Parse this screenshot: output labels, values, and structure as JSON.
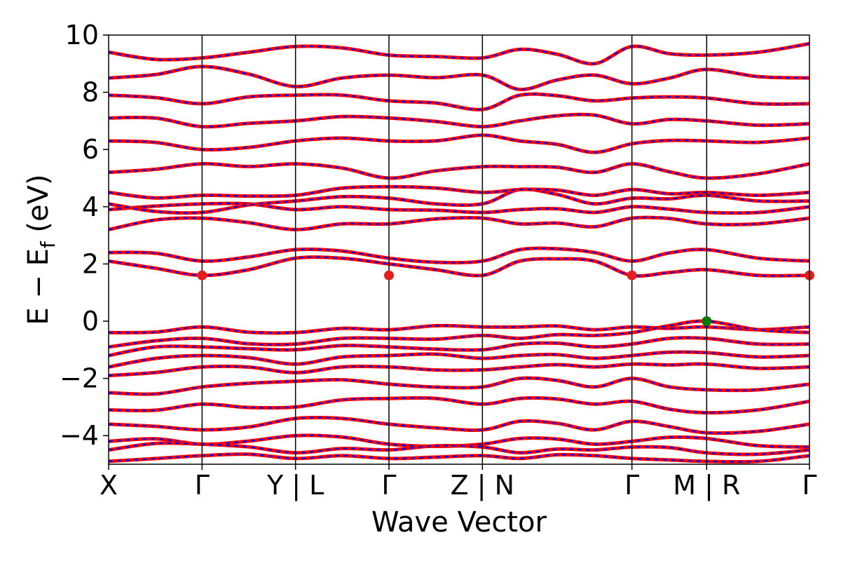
{
  "chart_data": {
    "type": "line",
    "xlabel": "Wave Vector",
    "ylabel": "E − E",
    "ylabel_sub": "f",
    "ylabel_unit": " (eV)",
    "ylim": [
      -5,
      10
    ],
    "yticks": [
      10,
      8,
      6,
      4,
      2,
      0,
      -2,
      -4
    ],
    "ytick_labels": [
      "10",
      "8",
      "6",
      "4",
      "2",
      "0",
      "−2",
      "−4"
    ],
    "grid": false,
    "colors": {
      "band_red": "#ff0000",
      "band_blue": "#0000ff",
      "cbm": "#e02020",
      "vbm": "#007a00"
    },
    "kpath_labels": [
      "X",
      "Γ",
      "Y | L",
      "Γ",
      "Z | N",
      "Γ",
      "M | R",
      "Γ"
    ],
    "kpath_positions": [
      0,
      1,
      2,
      3,
      4,
      5.6,
      6.4,
      7.5
    ],
    "cbm_points": [
      {
        "k": 1,
        "E": 1.6
      },
      {
        "k": 3,
        "E": 1.6
      },
      {
        "k": 5.6,
        "E": 1.6
      },
      {
        "k": 7.5,
        "E": 1.6
      }
    ],
    "vbm_point": {
      "k": 6.4,
      "E": 0.0
    },
    "series": [
      {
        "E": [
          2.1,
          1.6,
          2.2,
          2.0,
          1.6,
          2.1,
          2.1,
          1.6,
          1.8,
          1.6
        ]
      },
      {
        "E": [
          2.4,
          2.1,
          2.5,
          2.2,
          2.1,
          2.5,
          2.4,
          2.1,
          2.5,
          2.1
        ]
      },
      {
        "E": [
          3.2,
          3.6,
          3.2,
          3.4,
          3.6,
          3.4,
          3.3,
          3.6,
          3.4,
          3.6
        ]
      },
      {
        "E": [
          3.9,
          4.1,
          3.9,
          3.9,
          3.8,
          3.9,
          3.8,
          4.0,
          3.8,
          4.0
        ]
      },
      {
        "E": [
          4.1,
          3.8,
          4.2,
          4.3,
          4.1,
          4.6,
          4.1,
          4.3,
          4.4,
          4.2
        ]
      },
      {
        "E": [
          4.5,
          4.4,
          4.4,
          4.7,
          4.5,
          4.6,
          4.4,
          4.6,
          4.5,
          4.5
        ]
      },
      {
        "E": [
          5.2,
          5.5,
          5.5,
          5.0,
          5.4,
          5.4,
          5.2,
          5.5,
          5.0,
          5.5
        ]
      },
      {
        "E": [
          6.3,
          6.0,
          6.3,
          6.3,
          6.5,
          6.3,
          5.9,
          6.2,
          6.3,
          6.4
        ]
      },
      {
        "E": [
          7.1,
          6.8,
          7.0,
          7.1,
          6.8,
          7.0,
          7.2,
          6.9,
          7.0,
          6.9
        ]
      },
      {
        "E": [
          7.9,
          7.6,
          7.9,
          7.7,
          7.4,
          7.9,
          7.7,
          7.8,
          7.8,
          7.6
        ]
      },
      {
        "E": [
          8.5,
          8.9,
          8.2,
          8.6,
          8.6,
          8.1,
          8.6,
          8.3,
          8.8,
          8.5
        ]
      },
      {
        "E": [
          9.4,
          9.2,
          9.6,
          9.3,
          9.2,
          9.5,
          9.0,
          9.6,
          9.3,
          9.7
        ]
      },
      {
        "E": [
          -0.4,
          -0.2,
          -0.4,
          -0.3,
          -0.2,
          -0.2,
          -0.3,
          -0.2,
          -0.2,
          -0.2
        ]
      },
      {
        "E": [
          -0.9,
          -0.6,
          -0.8,
          -0.6,
          -0.5,
          -0.6,
          -0.5,
          -0.4,
          0.0,
          -0.4
        ]
      },
      {
        "E": [
          -1.2,
          -0.9,
          -1.0,
          -0.9,
          -1.0,
          -0.8,
          -0.9,
          -0.8,
          -0.6,
          -0.8
        ]
      },
      {
        "E": [
          -1.6,
          -1.2,
          -1.5,
          -1.2,
          -1.3,
          -1.2,
          -1.3,
          -1.2,
          -1.1,
          -1.2
        ]
      },
      {
        "E": [
          -1.9,
          -1.6,
          -1.8,
          -1.6,
          -1.7,
          -1.6,
          -1.6,
          -1.5,
          -1.5,
          -1.6
        ]
      },
      {
        "E": [
          -2.5,
          -2.3,
          -2.1,
          -2.2,
          -2.3,
          -2.0,
          -2.3,
          -2.0,
          -2.4,
          -2.2
        ]
      },
      {
        "E": [
          -3.1,
          -2.9,
          -3.0,
          -2.7,
          -2.9,
          -2.7,
          -2.9,
          -2.8,
          -3.2,
          -2.8
        ]
      },
      {
        "E": [
          -3.6,
          -3.8,
          -3.4,
          -3.6,
          -3.8,
          -3.5,
          -3.8,
          -3.5,
          -3.9,
          -3.6
        ]
      },
      {
        "E": [
          -4.2,
          -4.3,
          -4.0,
          -4.3,
          -4.3,
          -4.1,
          -4.3,
          -4.2,
          -4.1,
          -4.4
        ]
      },
      {
        "E": [
          -4.5,
          -4.3,
          -4.6,
          -4.5,
          -4.4,
          -4.6,
          -4.5,
          -4.4,
          -4.6,
          -4.5
        ]
      },
      {
        "E": [
          -4.9,
          -4.7,
          -4.8,
          -4.8,
          -4.7,
          -4.8,
          -4.7,
          -4.8,
          -4.9,
          -4.7
        ]
      }
    ]
  }
}
